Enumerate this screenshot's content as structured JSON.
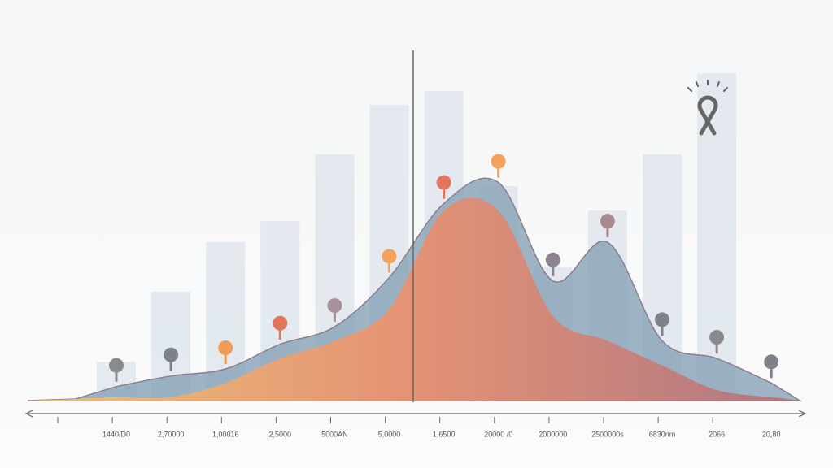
{
  "chart_data": {
    "type": "area",
    "categories": [
      "1440/D0",
      "2,70000",
      "1,00016",
      "2,5000",
      "5000AN",
      "5,0000",
      "1,6500",
      "20000 /0",
      "2000000",
      "2500000s",
      "6830nm",
      "2066",
      "20,80"
    ],
    "background_bars": {
      "color": "#dfe6ec",
      "values": [
        11,
        31,
        45,
        51,
        70,
        84,
        88,
        61,
        38,
        54,
        70,
        93,
        null
      ]
    },
    "series": [
      {
        "color": "#7f9cb3",
        "values": [
          4,
          7,
          9,
          16,
          21,
          35,
          56,
          62,
          34,
          45,
          17,
          12,
          5
        ]
      },
      {
        "colors": [
          "#f7c26e",
          "#ec8f6c",
          "#b0707c"
        ],
        "values": [
          1,
          1,
          5,
          12,
          17,
          26,
          54,
          54,
          24,
          17,
          10,
          3,
          1
        ]
      }
    ],
    "marker_colors": [
      "#8a8a8e",
      "#7d8288",
      "#ef9a55",
      "#e0765e",
      "#a8909a",
      "#f2a15f",
      "#e3745e",
      "#f2a15f",
      "#8d8490",
      "#a88990",
      "#7d8288",
      "#8a8a8e",
      "#7d8288"
    ],
    "ylim": [
      0,
      100
    ]
  }
}
